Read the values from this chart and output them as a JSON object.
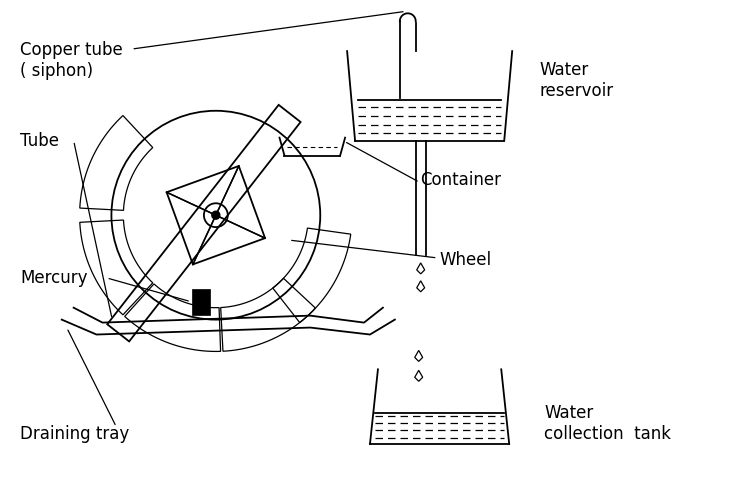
{
  "bg_color": "#ffffff",
  "line_color": "#000000",
  "labels": {
    "copper_tube": "Copper tube\n( siphon)",
    "water_reservoir": "Water\nreservoir",
    "tube": "Tube",
    "container": "Container",
    "wheel": "Wheel",
    "mercury": "Mercury",
    "draining_tray": "Draining tray",
    "water_collection": "Water\ncollection  tank"
  }
}
